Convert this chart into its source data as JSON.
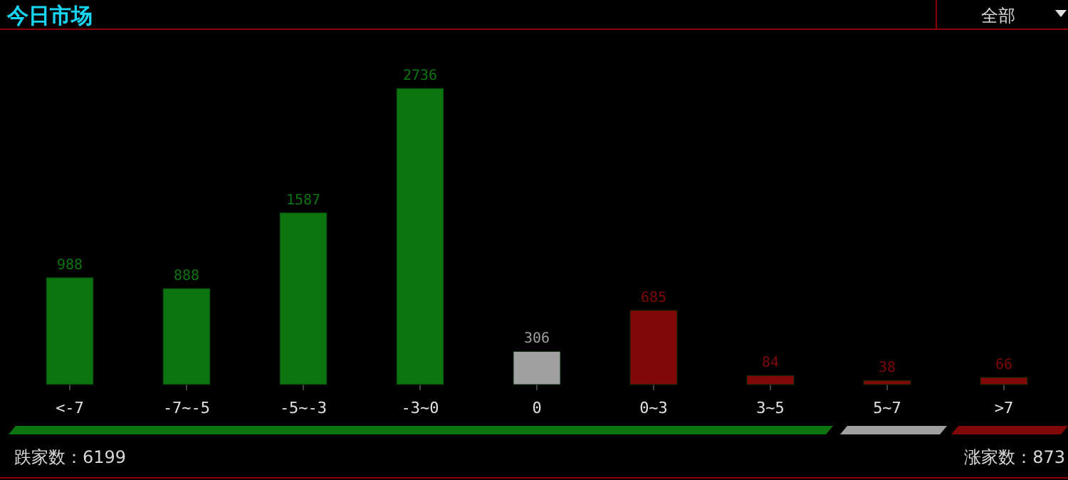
{
  "chart_data": {
    "type": "bar",
    "title": "今日市场",
    "categories": [
      "<-7",
      "-7~-5",
      "-5~-3",
      "-3~0",
      "0",
      "0~3",
      "3~5",
      "5~7",
      ">7"
    ],
    "values": [
      988,
      888,
      1587,
      2736,
      306,
      685,
      84,
      38,
      66
    ],
    "colors": [
      "#0c7510",
      "#0c7510",
      "#0c7510",
      "#0c7510",
      "#a0a0a0",
      "#800808",
      "#800808",
      "#800808",
      "#800808"
    ],
    "data_labels": true,
    "annotations": [
      "全部",
      "跌家数：6199",
      "涨家数：873"
    ]
  }
}
